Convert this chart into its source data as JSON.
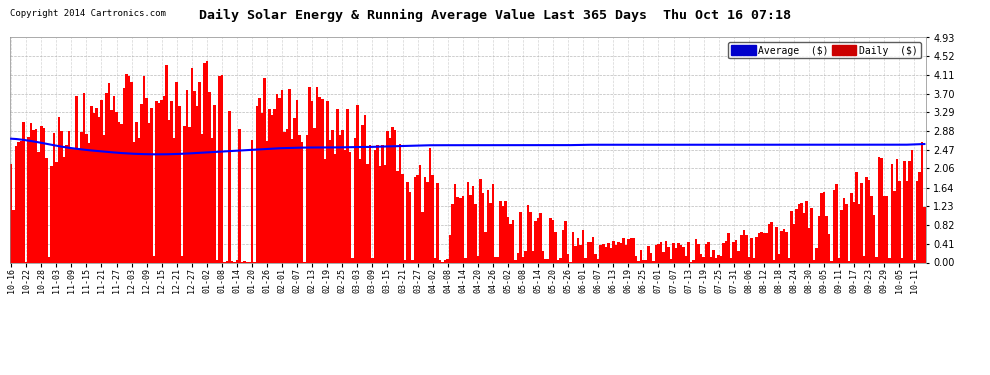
{
  "title": "Daily Solar Energy & Running Average Value Last 365 Days  Thu Oct 16 07:18",
  "copyright": "Copyright 2014 Cartronics.com",
  "bar_color": "#FF0000",
  "line_color": "#0000FF",
  "bg_color": "#FFFFFF",
  "plot_bg_color": "#FFFFFF",
  "grid_color": "#AAAAAA",
  "yticks": [
    0.0,
    0.41,
    0.82,
    1.23,
    1.64,
    2.06,
    2.47,
    2.88,
    3.29,
    3.7,
    4.11,
    4.52,
    4.93
  ],
  "ylim": [
    0.0,
    4.93
  ],
  "legend_avg_color": "#0000CC",
  "legend_daily_color": "#CC0000",
  "legend_avg_text": "Average  ($)",
  "legend_daily_text": "Daily  ($)",
  "n_bars": 365,
  "x_tick_labels": [
    "10-16",
    "10-22",
    "10-28",
    "11-03",
    "11-09",
    "11-15",
    "11-21",
    "11-27",
    "12-03",
    "12-09",
    "12-15",
    "12-21",
    "12-27",
    "01-02",
    "01-08",
    "01-14",
    "01-20",
    "01-26",
    "02-01",
    "02-07",
    "02-13",
    "02-19",
    "02-25",
    "03-03",
    "03-09",
    "03-15",
    "03-21",
    "03-27",
    "04-02",
    "04-08",
    "04-14",
    "04-20",
    "04-26",
    "05-02",
    "05-08",
    "05-14",
    "05-20",
    "05-26",
    "06-01",
    "06-07",
    "06-13",
    "06-19",
    "06-25",
    "07-01",
    "07-07",
    "07-13",
    "07-19",
    "07-25",
    "07-31",
    "08-06",
    "08-12",
    "08-18",
    "08-24",
    "08-30",
    "09-05",
    "09-11",
    "09-17",
    "09-23",
    "09-29",
    "10-05",
    "10-11"
  ],
  "avg_curve_points": [
    2.72,
    2.68,
    2.62,
    2.55,
    2.5,
    2.46,
    2.43,
    2.4,
    2.38,
    2.37,
    2.37,
    2.38,
    2.4,
    2.42,
    2.44,
    2.46,
    2.48,
    2.5,
    2.51,
    2.52,
    2.52,
    2.52,
    2.53,
    2.53,
    2.54,
    2.55,
    2.56,
    2.57,
    2.57,
    2.57,
    2.57,
    2.57,
    2.57,
    2.57,
    2.57,
    2.57,
    2.57,
    2.58,
    2.58,
    2.58,
    2.58,
    2.58,
    2.58,
    2.58,
    2.58,
    2.58,
    2.58,
    2.58,
    2.58,
    2.58,
    2.58,
    2.58,
    2.58,
    2.58,
    2.58,
    2.58,
    2.58,
    2.58,
    2.58,
    2.6
  ]
}
